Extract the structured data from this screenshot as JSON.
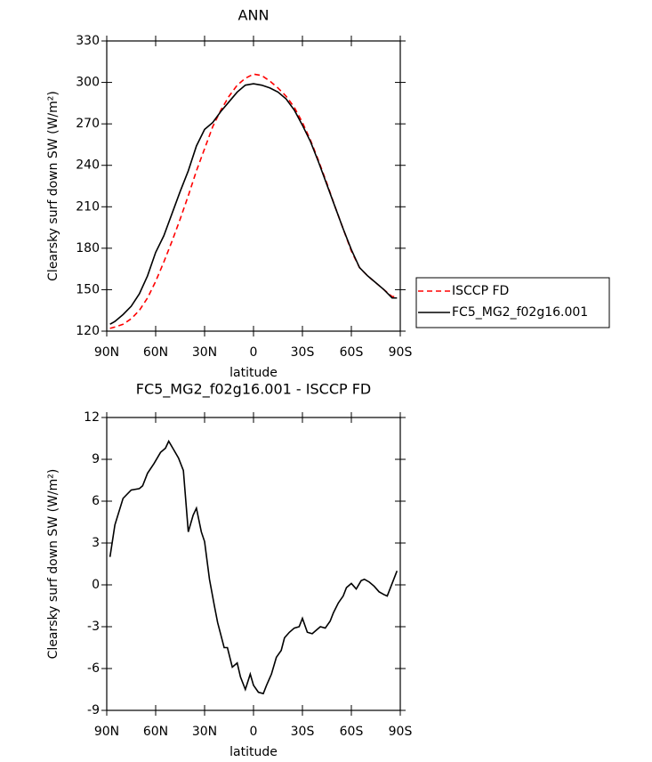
{
  "chart_data": [
    {
      "type": "line",
      "title": "ANN",
      "xlabel": "latitude",
      "ylabel": "Clearsky surf down SW (W/m²)",
      "x": [
        88,
        85,
        80,
        75,
        70,
        65,
        60,
        55,
        50,
        45,
        40,
        35,
        30,
        25,
        20,
        15,
        10,
        5,
        0,
        -5,
        -10,
        -15,
        -20,
        -25,
        -30,
        -35,
        -40,
        -45,
        -50,
        -55,
        -60,
        -65,
        -70,
        -75,
        -80,
        -85,
        -88
      ],
      "series": [
        {
          "name": "ISCCP FD",
          "color": "#ff0000",
          "linestyle": "dashed",
          "values": [
            122,
            123,
            125,
            129,
            135,
            144,
            156,
            170,
            185,
            201,
            218,
            236,
            252,
            268,
            280,
            290,
            298,
            303,
            306,
            305,
            301,
            296,
            290,
            282,
            271,
            258,
            243,
            227,
            210,
            194,
            178,
            166,
            160,
            155,
            150,
            145,
            145
          ]
        },
        {
          "name": "FC5_MG2_f02g16.001",
          "color": "#000000",
          "linestyle": "solid",
          "values": [
            125,
            127,
            132,
            138,
            147,
            160,
            177,
            189,
            205,
            221,
            236,
            254,
            266,
            271,
            279,
            286,
            293,
            298,
            299,
            298,
            296,
            293,
            288,
            280,
            269,
            257,
            242,
            226,
            210,
            194,
            179,
            166,
            160,
            155,
            150,
            144,
            144
          ]
        }
      ],
      "xlim": [
        90,
        -90
      ],
      "xticks": [
        {
          "value": 90,
          "label": "90N"
        },
        {
          "value": 60,
          "label": "60N"
        },
        {
          "value": 30,
          "label": "30N"
        },
        0,
        {
          "value": -30,
          "label": "30S"
        },
        {
          "value": -60,
          "label": "60S"
        },
        {
          "value": -90,
          "label": "90S"
        }
      ],
      "ylim": [
        120,
        330
      ],
      "yticks": [
        120,
        150,
        180,
        210,
        240,
        270,
        300,
        330
      ],
      "legend": "outside-right"
    },
    {
      "type": "line",
      "title": "FC5_MG2_f02g16.001 - ISCCP FD",
      "xlabel": "latitude",
      "ylabel": "Clearsky surf down SW (W/m²)",
      "x": [
        88,
        85,
        80,
        75,
        70,
        68,
        65,
        61,
        57,
        54,
        52,
        49,
        46,
        43,
        40,
        37,
        35,
        32,
        30,
        27,
        24,
        22,
        18,
        16,
        13,
        10,
        8,
        5,
        2,
        0,
        -3,
        -6,
        -8,
        -11,
        -14,
        -17,
        -19,
        -22,
        -25,
        -28,
        -30,
        -33,
        -36,
        -39,
        -41,
        -44,
        -47,
        -49,
        -52,
        -55,
        -57,
        -60,
        -63,
        -66,
        -68,
        -71,
        -74,
        -77,
        -80,
        -82,
        -85,
        -88
      ],
      "color": "#000000",
      "values": [
        2.0,
        4.3,
        6.2,
        6.8,
        6.9,
        7.1,
        8.0,
        8.7,
        9.5,
        9.8,
        10.3,
        9.7,
        9.1,
        8.2,
        3.8,
        5.0,
        5.5,
        3.8,
        3.1,
        0.4,
        -1.5,
        -2.7,
        -4.5,
        -4.5,
        -5.9,
        -5.6,
        -6.6,
        -7.5,
        -6.4,
        -7.2,
        -7.7,
        -7.8,
        -7.2,
        -6.4,
        -5.2,
        -4.7,
        -3.8,
        -3.4,
        -3.1,
        -3.0,
        -2.4,
        -3.4,
        -3.5,
        -3.2,
        -3.0,
        -3.1,
        -2.6,
        -2.0,
        -1.3,
        -0.8,
        -0.2,
        0.1,
        -0.3,
        0.3,
        0.4,
        0.2,
        -0.1,
        -0.5,
        -0.7,
        -0.8,
        0.1,
        1.0
      ],
      "xlim": [
        90,
        -90
      ],
      "xticks": [
        {
          "value": 90,
          "label": "90N"
        },
        {
          "value": 60,
          "label": "60N"
        },
        {
          "value": 30,
          "label": "30N"
        },
        0,
        {
          "value": -30,
          "label": "30S"
        },
        {
          "value": -60,
          "label": "60S"
        },
        {
          "value": -90,
          "label": "90S"
        }
      ],
      "ylim": [
        -9,
        12
      ],
      "yticks": [
        -9,
        -6,
        -3,
        0,
        3,
        6,
        9,
        12
      ]
    }
  ]
}
